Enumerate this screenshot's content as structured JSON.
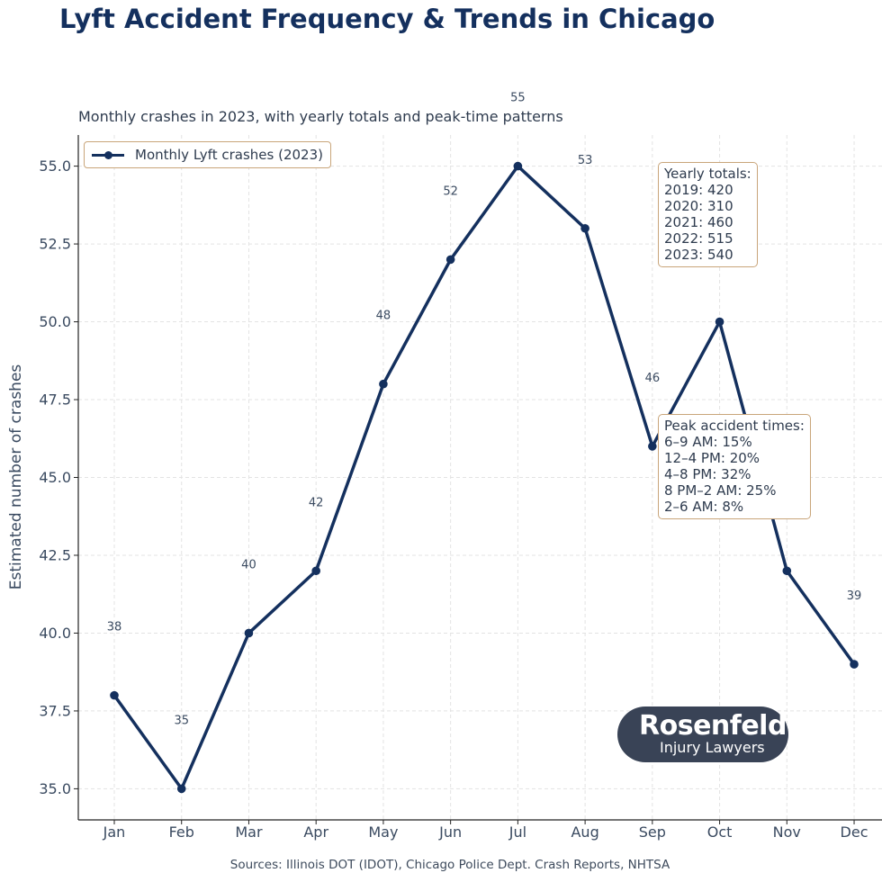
{
  "title": "Lyft Accident Frequency & Trends in Chicago",
  "subtitle": "Monthly crashes in 2023, with yearly totals and peak-time patterns",
  "sources": "Sources: Illinois DOT (IDOT), Chicago Police Dept. Crash Reports, NHTSA",
  "logo": {
    "line1": "Rosenfeld",
    "line2": "Injury Lawyers"
  },
  "yearly_totals": {
    "heading": "Yearly totals:",
    "lines": [
      "2019: 420",
      "2020: 310",
      "2021: 460",
      "2022: 515",
      "2023: 540"
    ]
  },
  "peak_times": {
    "heading": "Peak accident times:",
    "lines": [
      "6–9 AM: 15%",
      "12–4 PM: 20%",
      "4–8 PM: 32%",
      "8 PM–2 AM: 25%",
      "2–6 AM: 8%"
    ]
  },
  "colors": {
    "series": "#14305e",
    "box_border": "#c9a57a",
    "logo_bg": "#394356"
  },
  "chart_data": {
    "type": "line",
    "title": "Lyft Accident Frequency & Trends in Chicago",
    "subtitle": "Monthly crashes in 2023, with yearly totals and peak-time patterns",
    "xlabel": "",
    "ylabel": "Estimated number of crashes",
    "categories": [
      "Jan",
      "Feb",
      "Mar",
      "Apr",
      "May",
      "Jun",
      "Jul",
      "Aug",
      "Sep",
      "Oct",
      "Nov",
      "Dec"
    ],
    "series": [
      {
        "name": "Monthly Lyft crashes (2023)",
        "values": [
          38,
          35,
          40,
          42,
          48,
          52,
          55,
          53,
          46,
          50,
          42,
          39
        ]
      }
    ],
    "data_labels": [
      "38",
      "35",
      "40",
      "42",
      "48",
      "52",
      "55",
      "53",
      "46",
      "",
      "",
      "39"
    ],
    "yticks": [
      35.0,
      37.5,
      40.0,
      42.5,
      45.0,
      47.5,
      50.0,
      52.5,
      55.0
    ],
    "ytick_labels": [
      "35.0",
      "37.5",
      "40.0",
      "42.5",
      "45.0",
      "47.5",
      "50.0",
      "52.5",
      "55.0"
    ],
    "ylim": [
      34,
      56
    ],
    "grid": true,
    "legend": "top-left"
  }
}
